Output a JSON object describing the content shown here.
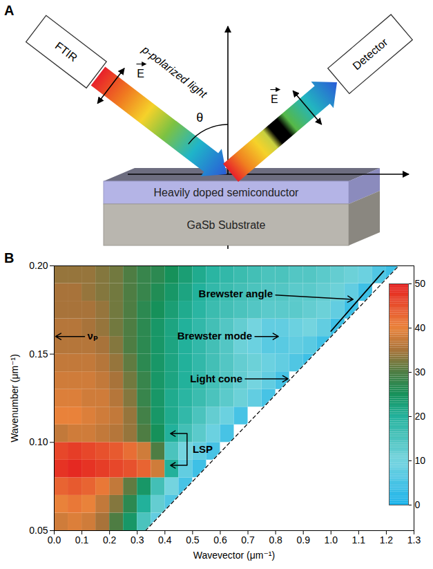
{
  "diagram": {
    "panel": "A",
    "source": "FTIR",
    "polarization": "p-polarized light",
    "field_labels": [
      "E",
      "E"
    ],
    "angle": "θ",
    "detector": "Detector",
    "layers": [
      "Heavily doped semiconductor",
      "GaSb Substrate"
    ]
  },
  "chart_data": {
    "type": "heatmap",
    "panel": "B",
    "x_label": "Wavevector (μm⁻¹)",
    "y_label": "Wavenumber (μm⁻¹)",
    "xlim": [
      0,
      1.3
    ],
    "xticks": [
      {
        "value": 0,
        "label": "0.0"
      },
      0.1,
      0.2,
      0.3,
      0.4,
      0.5,
      0.6,
      0.7,
      0.8,
      0.9,
      {
        "value": 1,
        "label": "1.0"
      },
      1.1,
      1.2,
      1.3
    ],
    "ylim": [
      0.05,
      0.2
    ],
    "yticks": [
      0.05,
      {
        "value": 0.1,
        "label": "0.10"
      },
      0.15,
      {
        "value": 0.2,
        "label": "0.20"
      }
    ],
    "x": [
      0.025,
      0.075,
      0.125,
      0.175,
      0.225,
      0.275,
      0.325,
      0.375,
      0.425,
      0.475,
      0.525,
      0.575,
      0.625,
      0.675,
      0.725,
      0.775,
      0.825,
      0.875,
      0.925,
      0.975,
      1.025,
      1.075,
      1.125,
      1.175,
      1.225,
      1.275
    ],
    "y": [
      0.055,
      0.065,
      0.075,
      0.085,
      0.095,
      0.105,
      0.115,
      0.125,
      0.135,
      0.145,
      0.155,
      0.165,
      0.175,
      0.185,
      0.195
    ],
    "values": [
      [
        38,
        39,
        38,
        35,
        30,
        24,
        15,
        8,
        null,
        null,
        null,
        null,
        null,
        null,
        null,
        null,
        null,
        null,
        null,
        null,
        null,
        null,
        null,
        null,
        null,
        null
      ],
      [
        40,
        41,
        40,
        37,
        33,
        27,
        20,
        12,
        6,
        null,
        null,
        null,
        null,
        null,
        null,
        null,
        null,
        null,
        null,
        null,
        null,
        null,
        null,
        null,
        null,
        null
      ],
      [
        43,
        44,
        43,
        41,
        37,
        31,
        24,
        16,
        10,
        5,
        null,
        null,
        null,
        null,
        null,
        null,
        null,
        null,
        null,
        null,
        null,
        null,
        null,
        null,
        null,
        null
      ],
      [
        48,
        49,
        48,
        47,
        46,
        45,
        43,
        38,
        20,
        8,
        4,
        null,
        null,
        null,
        null,
        null,
        null,
        null,
        null,
        null,
        null,
        null,
        null,
        null,
        null,
        null
      ],
      [
        46,
        47,
        46,
        45,
        44,
        42,
        38,
        30,
        15,
        10,
        8,
        5,
        null,
        null,
        null,
        null,
        null,
        null,
        null,
        null,
        null,
        null,
        null,
        null,
        null,
        null
      ],
      [
        37,
        38,
        38,
        37,
        36,
        34,
        30,
        25,
        20,
        16,
        13,
        9,
        5,
        null,
        null,
        null,
        null,
        null,
        null,
        null,
        null,
        null,
        null,
        null,
        null,
        null
      ],
      [
        40,
        40,
        39,
        38,
        37,
        34,
        29,
        24,
        21,
        18,
        15,
        12,
        9,
        5,
        null,
        null,
        null,
        null,
        null,
        null,
        null,
        null,
        null,
        null,
        null,
        null
      ],
      [
        39,
        39,
        38,
        38,
        36,
        33,
        28,
        24,
        21,
        19,
        17,
        15,
        13,
        11,
        8,
        5,
        null,
        null,
        null,
        null,
        null,
        null,
        null,
        null,
        null,
        null
      ],
      [
        38,
        38,
        38,
        37,
        35,
        32,
        28,
        24,
        22,
        20,
        18,
        16,
        14,
        12,
        10,
        8,
        5,
        null,
        null,
        null,
        null,
        null,
        null,
        null,
        null,
        null
      ],
      [
        37,
        37,
        37,
        36,
        34,
        31,
        27,
        24,
        22,
        20,
        18,
        16,
        14,
        12,
        11,
        9,
        8,
        6,
        4,
        null,
        null,
        null,
        null,
        null,
        null,
        null
      ],
      [
        36,
        36,
        36,
        35,
        33,
        30,
        27,
        24,
        22,
        20,
        18,
        16,
        14,
        11,
        9,
        7,
        7,
        8,
        7,
        4,
        null,
        null,
        null,
        null,
        null,
        null
      ],
      [
        36,
        36,
        35,
        34,
        32,
        30,
        27,
        24,
        22,
        20,
        18,
        16,
        14,
        12,
        10,
        8,
        8,
        9,
        10,
        8,
        4,
        null,
        null,
        null,
        null,
        null
      ],
      [
        35,
        35,
        35,
        34,
        32,
        30,
        27,
        25,
        23,
        21,
        19,
        17,
        16,
        15,
        14,
        13,
        13,
        13,
        12,
        11,
        8,
        4,
        null,
        null,
        null,
        null
      ],
      [
        35,
        35,
        34,
        33,
        32,
        30,
        28,
        26,
        24,
        22,
        20,
        18,
        17,
        16,
        15,
        14,
        14,
        13,
        13,
        12,
        11,
        8,
        4,
        null,
        null,
        null
      ],
      [
        34,
        34,
        34,
        33,
        32,
        30,
        28,
        27,
        25,
        23,
        21,
        19,
        18,
        17,
        16,
        15,
        15,
        14,
        14,
        13,
        12,
        11,
        9,
        6,
        4,
        null
      ]
    ],
    "colorbar": {
      "range": [
        0,
        50
      ],
      "ticks": [
        0,
        10,
        20,
        30,
        40,
        50
      ]
    },
    "lines": [
      {
        "x": [
          0.33,
          1.245
        ],
        "y": [
          0.05,
          0.2
        ],
        "line_style": "dashed",
        "color": "#000000"
      },
      {
        "x": [
          1.0,
          1.19
        ],
        "y": [
          0.163,
          0.197
        ],
        "line_style": "solid",
        "color": "#000000"
      }
    ],
    "annotations": [
      {
        "text": "νₚ",
        "x": 0.12,
        "y": 0.16,
        "arrows": [
          {
            "from": [
              0.11,
              0.16
            ],
            "to": [
              0.005,
              0.16
            ]
          }
        ]
      },
      {
        "text": "Brewster mode",
        "x": 0.715,
        "y": 0.16,
        "arrows": [
          {
            "from": [
              0.725,
              0.16
            ],
            "to": [
              0.81,
              0.16
            ]
          }
        ]
      },
      {
        "text": "Brewster angle",
        "x": 0.79,
        "y": 0.184,
        "arrows": [
          {
            "from": [
              0.8,
              0.1835
            ],
            "to": [
              1.08,
              0.181
            ]
          }
        ]
      },
      {
        "text": "Light cone",
        "x": 0.68,
        "y": 0.136,
        "arrows": [
          {
            "from": [
              0.69,
              0.136
            ],
            "to": [
              0.845,
              0.136
            ]
          }
        ]
      },
      {
        "text": "LSP",
        "x": 0.5,
        "y": 0.096,
        "arrows": [
          {
            "from": [
              0.48,
              0.105
            ],
            "to": [
              0.42,
              0.105
            ]
          },
          {
            "from": [
              0.48,
              0.087
            ],
            "to": [
              0.42,
              0.087
            ]
          }
        ],
        "lines": [
          {
            "from": [
              0.48,
              0.105
            ],
            "to": [
              0.48,
              0.087
            ]
          }
        ]
      }
    ]
  }
}
